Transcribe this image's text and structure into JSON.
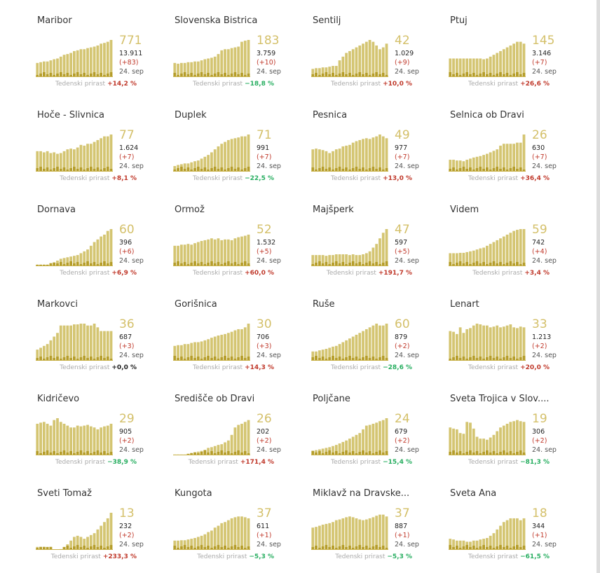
{
  "meta": {
    "date_label": "24. sep",
    "weekly_label": "Tedenski prirast",
    "colors": {
      "bar": "#d4c572",
      "bar_light": "#ddd08a",
      "bar_dark": "#b59d2a",
      "pos": "#c0392b",
      "neg": "#27ae60",
      "zero": "#222222"
    }
  },
  "cards": [
    {
      "name": "Maribor",
      "active": "771",
      "total": "13.911",
      "delta": "(+83)",
      "weekly": "+14,2 %",
      "sign": "pos"
    },
    {
      "name": "Slovenska Bistrica",
      "active": "183",
      "total": "3.759",
      "delta": "(+10)",
      "weekly": "−18,8 %",
      "sign": "neg"
    },
    {
      "name": "Šentilj",
      "active": "42",
      "total": "1.029",
      "delta": "(+9)",
      "weekly": "+10,0 %",
      "sign": "pos"
    },
    {
      "name": "Ptuj",
      "active": "145",
      "total": "3.146",
      "delta": "(+7)",
      "weekly": "+26,6 %",
      "sign": "pos"
    },
    {
      "name": "Hoče - Slivnica",
      "active": "77",
      "total": "1.624",
      "delta": "(+7)",
      "weekly": "+8,1 %",
      "sign": "pos"
    },
    {
      "name": "Duplek",
      "active": "71",
      "total": "991",
      "delta": "(+7)",
      "weekly": "−22,5 %",
      "sign": "neg"
    },
    {
      "name": "Pesnica",
      "active": "49",
      "total": "977",
      "delta": "(+7)",
      "weekly": "+13,0 %",
      "sign": "pos"
    },
    {
      "name": "Selnica ob Dravi",
      "active": "26",
      "total": "630",
      "delta": "(+7)",
      "weekly": "+36,4 %",
      "sign": "pos"
    },
    {
      "name": "Dornava",
      "active": "60",
      "total": "396",
      "delta": "(+6)",
      "weekly": "+6,9 %",
      "sign": "pos"
    },
    {
      "name": "Ormož",
      "active": "52",
      "total": "1.532",
      "delta": "(+5)",
      "weekly": "+60,0 %",
      "sign": "pos"
    },
    {
      "name": "Majšperk",
      "active": "47",
      "total": "597",
      "delta": "(+5)",
      "weekly": "+191,7 %",
      "sign": "pos"
    },
    {
      "name": "Videm",
      "active": "59",
      "total": "742",
      "delta": "(+4)",
      "weekly": "+3,4 %",
      "sign": "pos"
    },
    {
      "name": "Markovci",
      "active": "36",
      "total": "687",
      "delta": "(+3)",
      "weekly": "+0,0 %",
      "sign": "zero"
    },
    {
      "name": "Gorišnica",
      "active": "30",
      "total": "706",
      "delta": "(+3)",
      "weekly": "+14,3 %",
      "sign": "pos"
    },
    {
      "name": "Ruše",
      "active": "60",
      "total": "879",
      "delta": "(+2)",
      "weekly": "−28,6 %",
      "sign": "neg"
    },
    {
      "name": "Lenart",
      "active": "33",
      "total": "1.213",
      "delta": "(+2)",
      "weekly": "+20,0 %",
      "sign": "pos"
    },
    {
      "name": "Kidričevo",
      "active": "29",
      "total": "905",
      "delta": "(+2)",
      "weekly": "−38,9 %",
      "sign": "neg"
    },
    {
      "name": "Središče ob Dravi",
      "active": "26",
      "total": "202",
      "delta": "(+2)",
      "weekly": "+171,4 %",
      "sign": "pos"
    },
    {
      "name": "Poljčane",
      "active": "24",
      "total": "679",
      "delta": "(+2)",
      "weekly": "−15,4 %",
      "sign": "neg"
    },
    {
      "name": "Sveta Trojica v Slov....",
      "active": "19",
      "total": "306",
      "delta": "(+2)",
      "weekly": "−81,3 %",
      "sign": "neg"
    },
    {
      "name": "Sveti Tomaž",
      "active": "13",
      "total": "232",
      "delta": "(+2)",
      "weekly": "+233,3 %",
      "sign": "pos"
    },
    {
      "name": "Kungota",
      "active": "37",
      "total": "611",
      "delta": "(+1)",
      "weekly": "−5,3 %",
      "sign": "neg"
    },
    {
      "name": "Miklavž na Dravske...",
      "active": "37",
      "total": "887",
      "delta": "(+1)",
      "weekly": "−5,3 %",
      "sign": "neg"
    },
    {
      "name": "Sveta Ana",
      "active": "18",
      "total": "344",
      "delta": "(+1)",
      "weekly": "−61,5 %",
      "sign": "neg"
    }
  ],
  "chart_data": {
    "type": "bar",
    "note": "Small-multiple sparkline bar charts; per-card bar levels are relative (0-1) estimates of the bar heights read from each sparkline; daily new cases shown as darker inner bars.",
    "series": [
      {
        "name": "Maribor",
        "values": [
          0.38,
          0.4,
          0.42,
          0.42,
          0.45,
          0.48,
          0.5,
          0.55,
          0.6,
          0.62,
          0.65,
          0.7,
          0.72,
          0.75,
          0.75,
          0.78,
          0.8,
          0.82,
          0.85,
          0.9,
          0.92,
          0.95,
          1.0
        ]
      },
      {
        "name": "Slovenska Bistrica",
        "values": [
          0.38,
          0.36,
          0.38,
          0.38,
          0.4,
          0.4,
          0.42,
          0.42,
          0.45,
          0.48,
          0.5,
          0.52,
          0.55,
          0.62,
          0.72,
          0.75,
          0.75,
          0.78,
          0.8,
          0.82,
          0.95,
          0.98,
          1.0
        ]
      },
      {
        "name": "Šentilj",
        "values": [
          0.22,
          0.24,
          0.24,
          0.26,
          0.26,
          0.28,
          0.3,
          0.3,
          0.45,
          0.55,
          0.65,
          0.7,
          0.75,
          0.8,
          0.85,
          0.9,
          0.95,
          1.0,
          0.95,
          0.85,
          0.75,
          0.8,
          0.9
        ]
      },
      {
        "name": "Ptuj",
        "values": [
          0.5,
          0.5,
          0.5,
          0.5,
          0.5,
          0.5,
          0.5,
          0.5,
          0.5,
          0.5,
          0.48,
          0.5,
          0.55,
          0.6,
          0.65,
          0.7,
          0.75,
          0.8,
          0.85,
          0.9,
          0.95,
          0.95,
          0.9
        ]
      },
      {
        "name": "Hoče - Slivnica",
        "values": [
          0.55,
          0.55,
          0.52,
          0.55,
          0.5,
          0.52,
          0.48,
          0.5,
          0.55,
          0.6,
          0.62,
          0.6,
          0.65,
          0.72,
          0.7,
          0.75,
          0.75,
          0.8,
          0.85,
          0.9,
          0.95,
          0.95,
          1.0
        ]
      },
      {
        "name": "Duplek",
        "values": [
          0.15,
          0.18,
          0.2,
          0.22,
          0.22,
          0.25,
          0.28,
          0.3,
          0.35,
          0.4,
          0.45,
          0.52,
          0.6,
          0.68,
          0.75,
          0.8,
          0.85,
          0.88,
          0.9,
          0.92,
          0.95,
          0.95,
          1.0
        ]
      },
      {
        "name": "Pesnica",
        "values": [
          0.6,
          0.62,
          0.6,
          0.58,
          0.55,
          0.5,
          0.55,
          0.6,
          0.62,
          0.68,
          0.7,
          0.72,
          0.78,
          0.82,
          0.85,
          0.88,
          0.9,
          0.88,
          0.92,
          0.95,
          1.0,
          0.95,
          0.9
        ]
      },
      {
        "name": "Selnica ob Dravi",
        "values": [
          0.32,
          0.32,
          0.3,
          0.3,
          0.28,
          0.32,
          0.35,
          0.38,
          0.4,
          0.42,
          0.45,
          0.48,
          0.52,
          0.56,
          0.6,
          0.7,
          0.75,
          0.75,
          0.75,
          0.75,
          0.78,
          0.78,
          1.0
        ]
      },
      {
        "name": "Dornava",
        "values": [
          0.04,
          0.04,
          0.04,
          0.04,
          0.08,
          0.1,
          0.15,
          0.2,
          0.22,
          0.24,
          0.26,
          0.28,
          0.3,
          0.35,
          0.4,
          0.45,
          0.55,
          0.65,
          0.72,
          0.8,
          0.85,
          0.95,
          1.0
        ]
      },
      {
        "name": "Ormož",
        "values": [
          0.55,
          0.55,
          0.58,
          0.58,
          0.6,
          0.58,
          0.62,
          0.65,
          0.68,
          0.7,
          0.72,
          0.75,
          0.72,
          0.75,
          0.7,
          0.72,
          0.72,
          0.7,
          0.75,
          0.78,
          0.8,
          0.82,
          0.85
        ]
      },
      {
        "name": "Majšperk",
        "values": [
          0.3,
          0.3,
          0.3,
          0.3,
          0.28,
          0.3,
          0.3,
          0.32,
          0.32,
          0.32,
          0.32,
          0.3,
          0.32,
          0.3,
          0.3,
          0.32,
          0.35,
          0.4,
          0.5,
          0.6,
          0.75,
          0.9,
          1.0
        ]
      },
      {
        "name": "Videm",
        "values": [
          0.35,
          0.35,
          0.35,
          0.36,
          0.36,
          0.38,
          0.4,
          0.42,
          0.45,
          0.48,
          0.5,
          0.55,
          0.6,
          0.65,
          0.7,
          0.75,
          0.8,
          0.85,
          0.9,
          0.95,
          0.98,
          1.0,
          1.0
        ]
      },
      {
        "name": "Markovci",
        "values": [
          0.3,
          0.35,
          0.4,
          0.45,
          0.55,
          0.65,
          0.75,
          0.95,
          0.95,
          0.95,
          0.95,
          0.98,
          0.98,
          1.0,
          1.0,
          0.95,
          0.95,
          1.0,
          0.9,
          0.8,
          0.8,
          0.8,
          0.8
        ]
      },
      {
        "name": "Gorišnica",
        "values": [
          0.4,
          0.42,
          0.42,
          0.45,
          0.45,
          0.48,
          0.5,
          0.5,
          0.52,
          0.55,
          0.58,
          0.62,
          0.65,
          0.68,
          0.7,
          0.72,
          0.75,
          0.78,
          0.82,
          0.85,
          0.85,
          0.9,
          1.0
        ]
      },
      {
        "name": "Ruše",
        "values": [
          0.25,
          0.25,
          0.28,
          0.3,
          0.32,
          0.35,
          0.38,
          0.4,
          0.45,
          0.5,
          0.55,
          0.6,
          0.65,
          0.7,
          0.75,
          0.8,
          0.85,
          0.9,
          0.95,
          1.0,
          0.95,
          0.95,
          1.0
        ]
      },
      {
        "name": "Lenart",
        "values": [
          0.8,
          0.78,
          0.72,
          0.9,
          0.75,
          0.85,
          0.88,
          0.95,
          1.0,
          0.98,
          0.95,
          0.95,
          0.9,
          0.92,
          0.95,
          0.9,
          0.92,
          0.95,
          0.98,
          0.9,
          0.88,
          0.92,
          0.9
        ]
      },
      {
        "name": "Kidričevo",
        "values": [
          0.85,
          0.88,
          0.9,
          0.85,
          0.8,
          0.95,
          1.0,
          0.9,
          0.85,
          0.8,
          0.75,
          0.75,
          0.8,
          0.78,
          0.8,
          0.82,
          0.78,
          0.75,
          0.7,
          0.75,
          0.78,
          0.8,
          0.85
        ]
      },
      {
        "name": "Središče ob Dravi",
        "values": [
          0.02,
          0.02,
          0.02,
          0.02,
          0.04,
          0.06,
          0.08,
          0.1,
          0.12,
          0.15,
          0.2,
          0.22,
          0.25,
          0.28,
          0.3,
          0.35,
          0.4,
          0.55,
          0.75,
          0.82,
          0.85,
          0.9,
          0.95
        ]
      },
      {
        "name": "Poljčane",
        "values": [
          0.12,
          0.14,
          0.16,
          0.18,
          0.2,
          0.22,
          0.25,
          0.28,
          0.32,
          0.36,
          0.4,
          0.45,
          0.5,
          0.55,
          0.6,
          0.7,
          0.8,
          0.82,
          0.85,
          0.88,
          0.92,
          0.95,
          1.0
        ]
      },
      {
        "name": "Sveta Trojica v Slov....",
        "values": [
          0.75,
          0.72,
          0.7,
          0.6,
          0.58,
          0.9,
          0.88,
          0.72,
          0.5,
          0.45,
          0.45,
          0.42,
          0.48,
          0.55,
          0.65,
          0.75,
          0.8,
          0.85,
          0.9,
          0.92,
          0.95,
          0.92,
          0.9
        ]
      },
      {
        "name": "Sveti Tomaž",
        "values": [
          0.08,
          0.08,
          0.08,
          0.08,
          0.08,
          0.0,
          0.0,
          0.02,
          0.08,
          0.15,
          0.25,
          0.35,
          0.38,
          0.35,
          0.3,
          0.35,
          0.4,
          0.45,
          0.55,
          0.65,
          0.75,
          0.85,
          1.0
        ]
      },
      {
        "name": "Kungota",
        "values": [
          0.25,
          0.25,
          0.26,
          0.26,
          0.28,
          0.3,
          0.32,
          0.35,
          0.38,
          0.42,
          0.48,
          0.52,
          0.6,
          0.65,
          0.72,
          0.75,
          0.8,
          0.85,
          0.88,
          0.9,
          0.9,
          0.88,
          0.85
        ]
      },
      {
        "name": "Miklavž na Dravske...",
        "values": [
          0.6,
          0.62,
          0.65,
          0.68,
          0.7,
          0.72,
          0.75,
          0.8,
          0.82,
          0.85,
          0.88,
          0.9,
          0.88,
          0.85,
          0.82,
          0.8,
          0.82,
          0.85,
          0.88,
          0.92,
          0.95,
          0.95,
          0.9
        ]
      },
      {
        "name": "Sveta Ana",
        "values": [
          0.3,
          0.28,
          0.25,
          0.25,
          0.25,
          0.22,
          0.22,
          0.25,
          0.25,
          0.28,
          0.3,
          0.32,
          0.38,
          0.45,
          0.55,
          0.65,
          0.75,
          0.8,
          0.85,
          0.85,
          0.85,
          0.8,
          0.85
        ]
      }
    ]
  }
}
